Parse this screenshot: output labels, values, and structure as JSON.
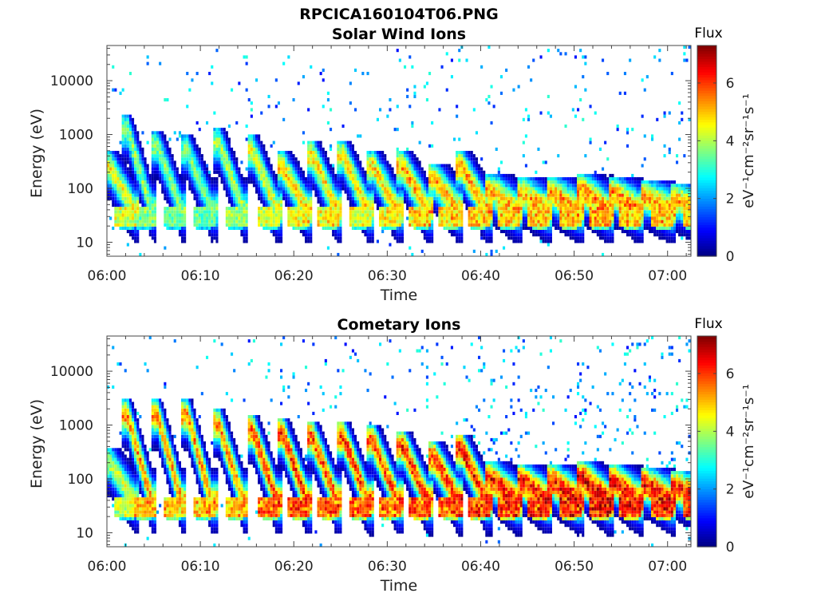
{
  "figure": {
    "title": "RPCICA160104T06.PNG"
  },
  "colormap": [
    "#00007f",
    "#0000ff",
    "#0080ff",
    "#00ffff",
    "#80ff80",
    "#ffff00",
    "#ff8000",
    "#ff0000",
    "#7f0000"
  ],
  "chart_data": [
    {
      "type": "heatmap",
      "title": "Solar Wind Ions",
      "xlabel": "Time",
      "ylabel": "Energy (eV)",
      "x_ticks": [
        "06:00",
        "06:10",
        "06:20",
        "06:30",
        "06:40",
        "06:50",
        "07:00"
      ],
      "x_range_minutes": [
        0,
        62.5
      ],
      "y_scale": "log",
      "y_ticks": [
        "10",
        "100",
        "1000",
        "10000"
      ],
      "y_range": [
        5.5,
        45000
      ],
      "colorbar": {
        "label": "Flux",
        "units": "eV⁻¹cm⁻²sr⁻¹s⁻¹",
        "range": [
          0,
          7.3
        ],
        "ticks": [
          "0",
          "2",
          "4",
          "6"
        ]
      },
      "bursts": [
        {
          "t": 0.3,
          "peak": 4.6,
          "top": 250
        },
        {
          "t": 2.2,
          "peak": 3.9,
          "top": 1200
        },
        {
          "t": 5.4,
          "peak": 3.8,
          "top": 600
        },
        {
          "t": 8.6,
          "peak": 3.7,
          "top": 500
        },
        {
          "t": 12.0,
          "peak": 4.1,
          "top": 700
        },
        {
          "t": 15.6,
          "peak": 4.5,
          "top": 500
        },
        {
          "t": 18.8,
          "peak": 4.9,
          "top": 250
        },
        {
          "t": 22.0,
          "peak": 4.9,
          "top": 400
        },
        {
          "t": 25.3,
          "peak": 4.8,
          "top": 400
        },
        {
          "t": 28.5,
          "peak": 4.9,
          "top": 250
        },
        {
          "t": 31.7,
          "peak": 5.3,
          "top": 250
        },
        {
          "t": 35.0,
          "peak": 5.2,
          "top": 150
        },
        {
          "t": 38.0,
          "peak": 5.3,
          "top": 250
        },
        {
          "t": 41.2,
          "peak": 5.2,
          "top": 90
        },
        {
          "t": 44.5,
          "peak": 5.3,
          "top": 80
        },
        {
          "t": 47.8,
          "peak": 5.4,
          "top": 80
        },
        {
          "t": 51.0,
          "peak": 5.6,
          "top": 90
        },
        {
          "t": 54.3,
          "peak": 5.5,
          "top": 80
        },
        {
          "t": 57.7,
          "peak": 5.4,
          "top": 70
        },
        {
          "t": 61.0,
          "peak": 5.2,
          "top": 60
        }
      ],
      "noise_density": 1.0
    },
    {
      "type": "heatmap",
      "title": "Cometary Ions",
      "xlabel": "Time",
      "ylabel": "Energy (eV)",
      "x_ticks": [
        "06:00",
        "06:10",
        "06:20",
        "06:30",
        "06:40",
        "06:50",
        "07:00"
      ],
      "x_range_minutes": [
        0,
        62.5
      ],
      "y_scale": "log",
      "y_ticks": [
        "10",
        "100",
        "1000",
        "10000"
      ],
      "y_range": [
        5.5,
        45000
      ],
      "colorbar": {
        "label": "Flux",
        "units": "eV⁻¹cm⁻²sr⁻¹s⁻¹",
        "range": [
          0,
          7.3
        ],
        "ticks": [
          "0",
          "2",
          "4",
          "6"
        ]
      },
      "bursts": [
        {
          "t": 0.3,
          "peak": 4.3,
          "top": 200
        },
        {
          "t": 2.2,
          "peak": 5.4,
          "top": 1500
        },
        {
          "t": 5.4,
          "peak": 5.3,
          "top": 1500
        },
        {
          "t": 8.6,
          "peak": 5.4,
          "top": 1500
        },
        {
          "t": 12.0,
          "peak": 5.4,
          "top": 1000
        },
        {
          "t": 15.6,
          "peak": 6.0,
          "top": 800
        },
        {
          "t": 18.8,
          "peak": 6.2,
          "top": 700
        },
        {
          "t": 22.0,
          "peak": 6.0,
          "top": 600
        },
        {
          "t": 25.3,
          "peak": 6.1,
          "top": 600
        },
        {
          "t": 28.5,
          "peak": 5.9,
          "top": 500
        },
        {
          "t": 31.7,
          "peak": 6.2,
          "top": 400
        },
        {
          "t": 35.0,
          "peak": 6.3,
          "top": 250
        },
        {
          "t": 38.0,
          "peak": 6.4,
          "top": 350
        },
        {
          "t": 41.2,
          "peak": 6.5,
          "top": 100
        },
        {
          "t": 44.5,
          "peak": 6.6,
          "top": 90
        },
        {
          "t": 47.8,
          "peak": 6.6,
          "top": 90
        },
        {
          "t": 51.0,
          "peak": 6.8,
          "top": 100
        },
        {
          "t": 54.3,
          "peak": 6.5,
          "top": 90
        },
        {
          "t": 57.7,
          "peak": 6.6,
          "top": 80
        },
        {
          "t": 61.0,
          "peak": 6.3,
          "top": 70
        }
      ],
      "noise_density": 0.9
    }
  ]
}
